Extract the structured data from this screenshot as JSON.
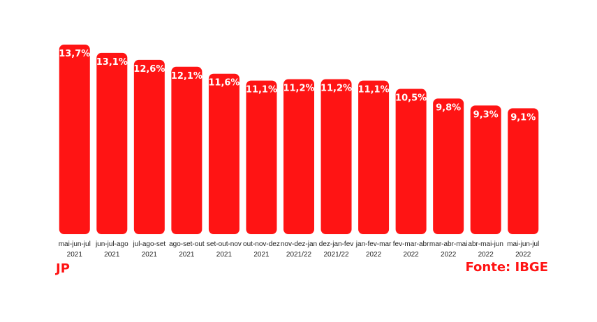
{
  "brand": "JP",
  "source": "Fonte: IBGE",
  "colors": {
    "bar": "#ff1414",
    "label": "#ffffff",
    "text": "#222222",
    "brand": "#ff1414"
  },
  "chart_data": {
    "type": "bar",
    "categories": [
      [
        "mai-jun-jul",
        "2021"
      ],
      [
        "jun-jul-ago",
        "2021"
      ],
      [
        "jul-ago-set",
        "2021"
      ],
      [
        "ago-set-out",
        "2021"
      ],
      [
        "set-out-nov",
        "2021"
      ],
      [
        "out-nov-dez",
        "2021"
      ],
      [
        "nov-dez-jan",
        "2021/22"
      ],
      [
        "dez-jan-fev",
        "2021/22"
      ],
      [
        "jan-fev-mar",
        "2022"
      ],
      [
        "fev-mar-abr",
        "2022"
      ],
      [
        "mar-abr-mai",
        "2022"
      ],
      [
        "abr-mai-jun",
        "2022"
      ],
      [
        "mai-jun-jul",
        "2022"
      ]
    ],
    "values": [
      13.7,
      13.1,
      12.6,
      12.1,
      11.6,
      11.1,
      11.2,
      11.2,
      11.1,
      10.5,
      9.8,
      9.3,
      9.1
    ],
    "value_labels": [
      "13,7%",
      "13,1%",
      "12,6%",
      "12,1%",
      "11,6%",
      "11,1%",
      "11,2%",
      "11,2%",
      "11,1%",
      "10,5%",
      "9,8%",
      "9,3%",
      "9,1%"
    ],
    "ylim": [
      0,
      13.7
    ],
    "grid": false,
    "legend": "none"
  }
}
